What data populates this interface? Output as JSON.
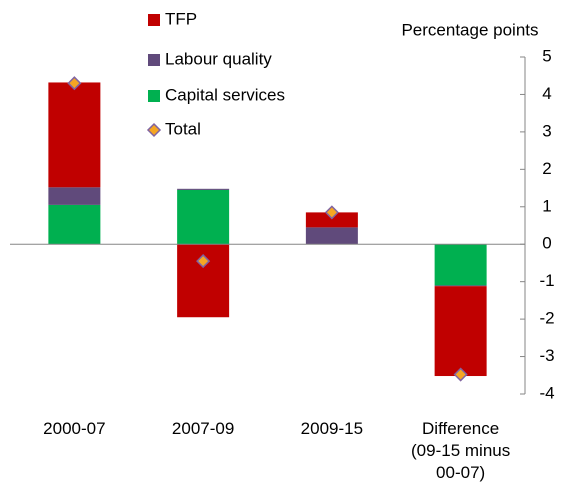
{
  "chart_data": {
    "type": "bar",
    "stacked": true,
    "y_axis_title": "Percentage points",
    "categories": [
      "2000-07",
      "2007-09",
      "2009-15",
      "Difference (09-15 minus 00-07)"
    ],
    "series": [
      {
        "name": "TFP",
        "color": "#c00000",
        "values": [
          2.8,
          -1.95,
          0.4,
          -2.4
        ]
      },
      {
        "name": "Labour quality",
        "color": "#604a7b",
        "values": [
          0.47,
          0.03,
          0.45,
          -0.02
        ]
      },
      {
        "name": "Capital services",
        "color": "#00b050",
        "values": [
          1.05,
          1.45,
          0,
          -1.1
        ]
      },
      {
        "name": "Total",
        "color": "#f5a623",
        "mark": "diamond",
        "values": [
          4.3,
          -0.45,
          0.85,
          -3.48
        ]
      }
    ],
    "ylim": [
      -4,
      5
    ],
    "yticks": [
      -4,
      -3,
      -2,
      -1,
      0,
      1,
      2,
      3,
      4,
      5
    ],
    "y_axis_side": "right",
    "grid": false
  }
}
